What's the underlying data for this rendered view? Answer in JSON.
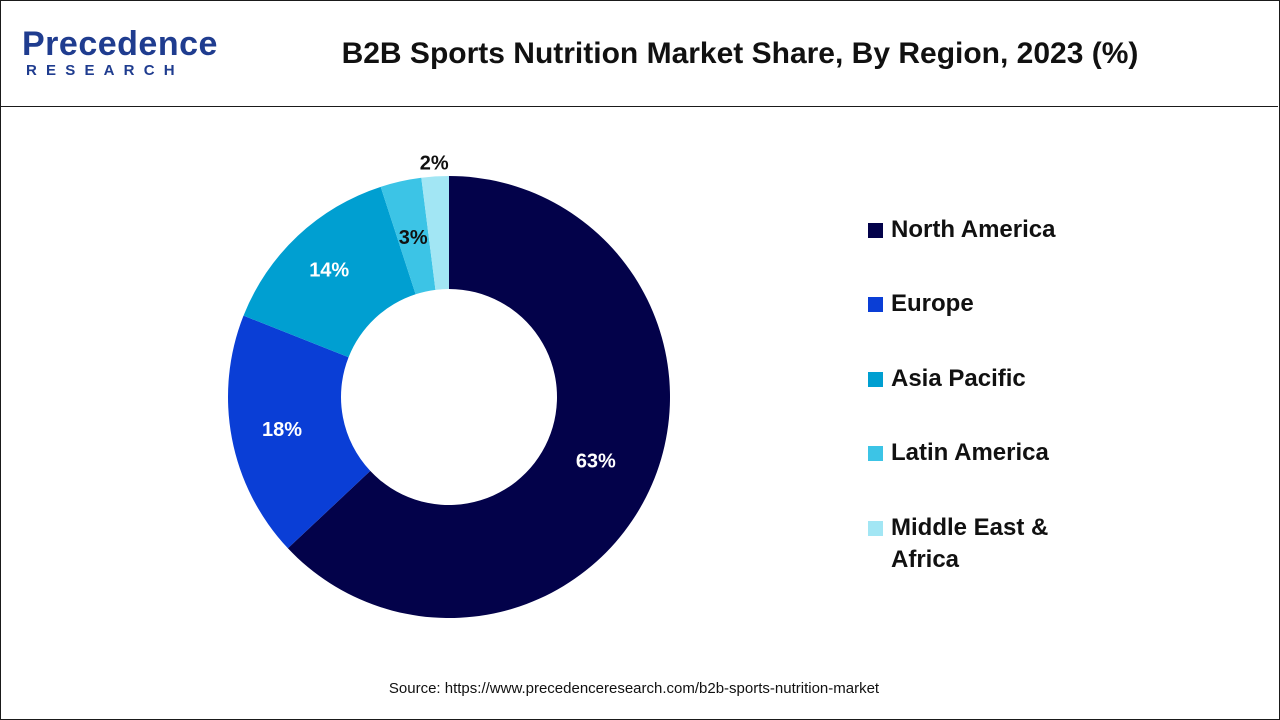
{
  "brand": {
    "name": "Precedence",
    "tagline": "RESEARCH",
    "color": "#1f3c8f"
  },
  "chart_data": {
    "type": "pie",
    "variant": "donut",
    "title": "B2B Sports Nutrition Market Share, By Region, 2023 (%)",
    "categories": [
      "North America",
      "Europe",
      "Asia Pacific",
      "Latin America",
      "Middle East & Africa"
    ],
    "values": [
      63,
      18,
      14,
      3,
      2
    ],
    "data_labels": [
      "63%",
      "18%",
      "14%",
      "3%",
      "2%"
    ],
    "colors": [
      "#03024a",
      "#0a3ed6",
      "#009fd1",
      "#3cc4e6",
      "#a2e6f4"
    ],
    "label_colors": [
      "#ffffff",
      "#ffffff",
      "#ffffff",
      "#111111",
      "#111111"
    ],
    "legend_position": "right",
    "unit": "%"
  },
  "legend": {
    "items": [
      "North America",
      "Europe",
      "Asia Pacific",
      "Latin America",
      "Middle East & Africa"
    ]
  },
  "footer": {
    "source": "Source: https://www.precedenceresearch.com/b2b-sports-nutrition-market"
  }
}
